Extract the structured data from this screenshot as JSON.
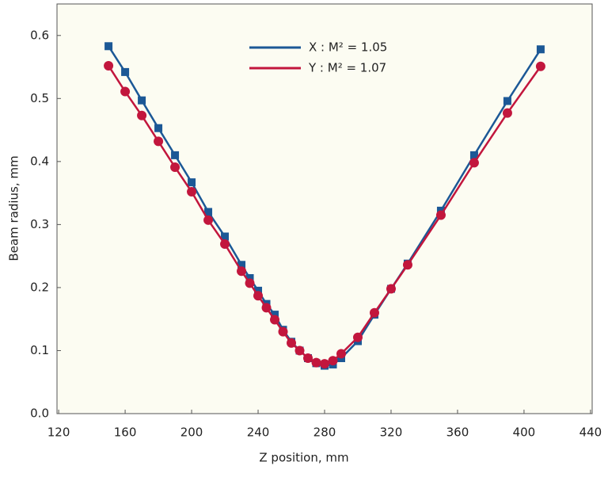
{
  "chart_data": {
    "type": "line",
    "x_label": "Z position, mm",
    "y_label": "Beam radius, mm",
    "x": [
      150,
      160,
      170,
      180,
      190,
      200,
      210,
      220,
      230,
      235,
      240,
      245,
      250,
      255,
      260,
      265,
      270,
      275,
      280,
      285,
      290,
      300,
      310,
      320,
      330,
      350,
      370,
      390,
      410
    ],
    "series": [
      {
        "name": "X : M² = 1.05",
        "color": "#1c5896",
        "marker": "square",
        "values": [
          0.583,
          0.542,
          0.497,
          0.453,
          0.41,
          0.367,
          0.32,
          0.281,
          0.236,
          0.215,
          0.195,
          0.174,
          0.157,
          0.133,
          0.114,
          0.1,
          0.088,
          0.08,
          0.076,
          0.078,
          0.088,
          0.115,
          0.157,
          0.198,
          0.238,
          0.322,
          0.41,
          0.496,
          0.578
        ]
      },
      {
        "name": "Y : M² = 1.07",
        "color": "#c2163d",
        "marker": "circle",
        "values": [
          0.552,
          0.511,
          0.473,
          0.432,
          0.391,
          0.352,
          0.307,
          0.269,
          0.226,
          0.207,
          0.187,
          0.168,
          0.149,
          0.13,
          0.112,
          0.1,
          0.088,
          0.081,
          0.079,
          0.084,
          0.095,
          0.121,
          0.16,
          0.198,
          0.236,
          0.315,
          0.398,
          0.477,
          0.551
        ]
      }
    ],
    "xlim": [
      119,
      441
    ],
    "xticks": [
      120,
      160,
      200,
      240,
      280,
      320,
      360,
      400,
      440
    ],
    "ylim": [
      0,
      0.65
    ],
    "yticks": [
      {
        "value": 0,
        "label": "0.0"
      },
      0.1,
      0.2,
      0.3,
      0.4,
      0.5,
      0.6
    ]
  }
}
